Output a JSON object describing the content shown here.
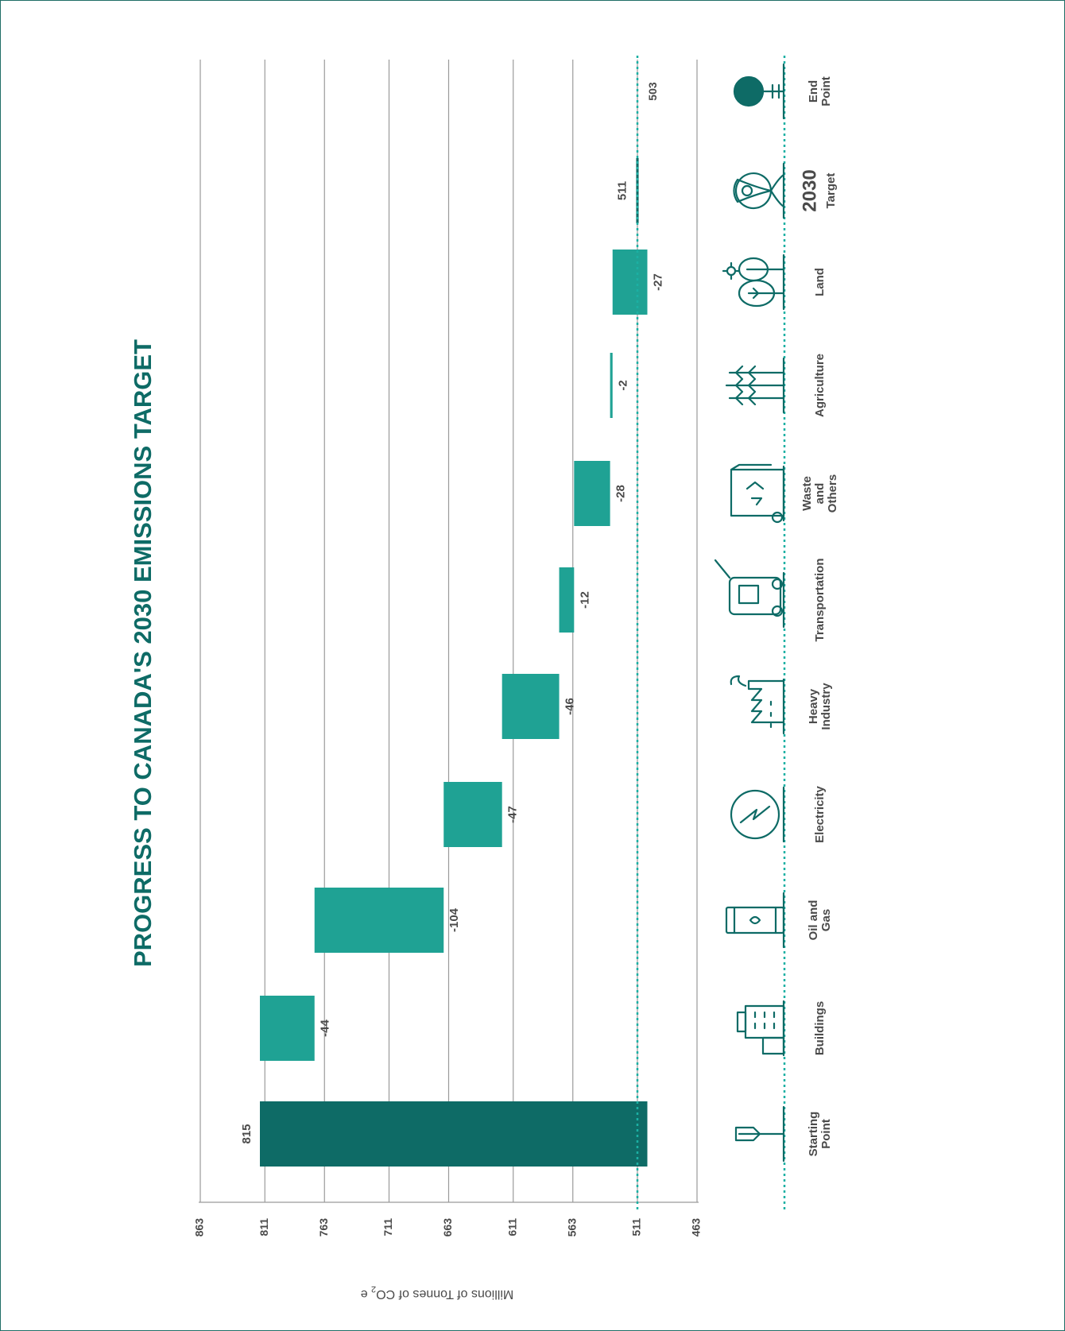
{
  "chart_data": {
    "type": "waterfall",
    "title": "PROGRESS TO CANADA'S 2030 EMISSIONS TARGET",
    "ylabel": "Millions of Tonnes of CO",
    "ylabel_sub": "2",
    "ylabel_tail": " e",
    "ylim": [
      463,
      863
    ],
    "yticks": [
      "863",
      "811",
      "763",
      "711",
      "663",
      "611",
      "563",
      "511",
      "463"
    ],
    "tick_values": [
      863,
      811,
      763,
      711,
      663,
      611,
      563,
      511,
      463
    ],
    "baseline": 503,
    "target_line": 511,
    "categories": [
      {
        "key": "start",
        "label": [
          "Starting",
          "Point"
        ],
        "kind": "total",
        "from": 503,
        "to": 815,
        "value_label": "815",
        "icon": "signpost-icon"
      },
      {
        "key": "buildings",
        "label": [
          "Buildings"
        ],
        "kind": "delta",
        "from": 815,
        "to": 771,
        "value_label": "-44",
        "icon": "building-icon"
      },
      {
        "key": "oilgas",
        "label": [
          "Oil and",
          "Gas"
        ],
        "kind": "delta",
        "from": 771,
        "to": 667,
        "value_label": "-104",
        "icon": "oil-barrel-icon"
      },
      {
        "key": "electricity",
        "label": [
          "Electricity"
        ],
        "kind": "delta",
        "from": 667,
        "to": 620,
        "value_label": "-47",
        "icon": "lightning-icon"
      },
      {
        "key": "industry",
        "label": [
          "Heavy",
          "Industry"
        ],
        "kind": "delta",
        "from": 620,
        "to": 574,
        "value_label": "-46",
        "icon": "factory-icon"
      },
      {
        "key": "transport",
        "label": [
          "Transportation"
        ],
        "kind": "delta",
        "from": 574,
        "to": 562,
        "value_label": "-12",
        "icon": "bus-icon"
      },
      {
        "key": "waste",
        "label": [
          "Waste",
          "and",
          "Others"
        ],
        "kind": "delta",
        "from": 562,
        "to": 533,
        "value_label": "-28",
        "icon": "recycle-bin-icon"
      },
      {
        "key": "agriculture",
        "label": [
          "Agriculture"
        ],
        "kind": "delta",
        "from": 533,
        "to": 531,
        "value_label": "-2",
        "icon": "wheat-icon"
      },
      {
        "key": "land",
        "label": [
          "Land"
        ],
        "kind": "delta",
        "from": 531,
        "to": 503,
        "value_label": "-27",
        "icon": "tree-sun-icon"
      },
      {
        "key": "target",
        "label": [
          "2030",
          "Target"
        ],
        "kind": "marker",
        "from": 512,
        "to": 510,
        "value_label": "511",
        "icon": "map-pin-icon"
      },
      {
        "key": "end",
        "label": [
          "End",
          "Point"
        ],
        "kind": "endline",
        "from": 503,
        "to": 503,
        "value_label": "503",
        "icon": "end-dot-icon"
      }
    ],
    "colors": {
      "total": "#0e6b66",
      "delta": "#1fa294",
      "title": "#0e6b66",
      "grid": "#9a9a9a",
      "target": "#1bb0a3",
      "text": "#4a4a4a",
      "icon": "#0e6b66"
    }
  }
}
